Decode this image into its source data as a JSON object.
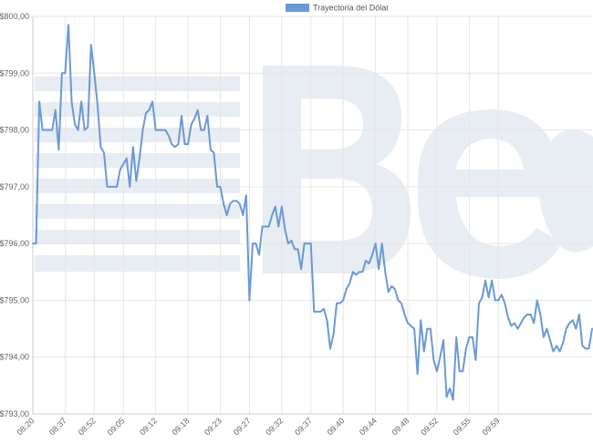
{
  "chart_data": {
    "type": "line",
    "title": "",
    "xlabel": "",
    "ylabel": "",
    "legend": {
      "position": "top-center",
      "entries": [
        "Trayectoria del Dólar"
      ]
    },
    "grid": true,
    "ylim": [
      793,
      800
    ],
    "y_ticks": [
      "$793,00",
      "$794,00",
      "$795,00",
      "$796,00",
      "$797,00",
      "$798,00",
      "$799,00",
      "$800,00"
    ],
    "x_ticks": [
      "08:20",
      "08:37",
      "08:52",
      "09:05",
      "09:12",
      "09:18",
      "09:23",
      "09:27",
      "09:32",
      "09:37",
      "09:40",
      "09:44",
      "09:48",
      "09:52",
      "09:55",
      "09:59"
    ],
    "x_tick_index": [
      0,
      10,
      19,
      28,
      38,
      48,
      58,
      67,
      77,
      86,
      96,
      106,
      116,
      125,
      135,
      144
    ],
    "series": [
      {
        "name": "Trayectoria del Dólar",
        "color": "#6a99d6",
        "values": [
          796.0,
          796.0,
          798.5,
          798.0,
          798.0,
          798.0,
          798.0,
          798.35,
          797.65,
          799.0,
          799.0,
          799.85,
          798.5,
          798.1,
          798.0,
          798.5,
          798.0,
          798.05,
          799.5,
          799.0,
          798.45,
          797.7,
          797.6,
          797.0,
          797.0,
          797.0,
          797.0,
          797.3,
          797.4,
          797.5,
          797.0,
          797.7,
          797.1,
          797.5,
          798.0,
          798.3,
          798.35,
          798.5,
          798.0,
          798.0,
          798.0,
          798.0,
          797.9,
          797.75,
          797.7,
          797.75,
          798.25,
          797.75,
          797.75,
          798.1,
          798.2,
          798.35,
          798.0,
          798.0,
          798.25,
          797.65,
          797.6,
          797.0,
          797.0,
          796.7,
          796.5,
          796.7,
          796.75,
          796.75,
          796.7,
          796.5,
          796.85,
          795.0,
          796.0,
          796.0,
          795.8,
          796.3,
          796.3,
          796.3,
          796.5,
          796.65,
          796.3,
          796.65,
          796.25,
          796.0,
          796.05,
          795.9,
          795.9,
          795.55,
          796.0,
          796.0,
          796.0,
          794.8,
          794.8,
          794.8,
          794.85,
          794.65,
          794.15,
          794.4,
          794.95,
          794.95,
          795.0,
          795.2,
          795.3,
          795.5,
          795.45,
          795.5,
          795.5,
          795.7,
          795.65,
          795.8,
          796.0,
          795.55,
          796.0,
          795.5,
          795.15,
          795.25,
          795.2,
          795.0,
          794.95,
          794.75,
          794.6,
          794.55,
          794.5,
          793.7,
          794.65,
          794.1,
          794.5,
          794.5,
          793.95,
          793.75,
          794.0,
          794.3,
          793.3,
          793.45,
          793.25,
          794.35,
          793.75,
          793.75,
          794.15,
          794.35,
          794.35,
          793.95,
          794.95,
          795.05,
          795.35,
          795.05,
          795.35,
          795.0,
          795.0,
          795.1,
          794.95,
          794.7,
          794.55,
          794.6,
          794.5,
          794.6,
          794.7,
          794.75,
          794.75,
          794.6,
          795.0,
          794.75,
          794.35,
          794.5,
          794.3,
          794.1,
          794.2,
          794.1,
          794.25,
          794.5,
          794.6,
          794.65,
          794.5,
          794.75,
          794.2,
          794.15,
          794.15,
          794.5
        ]
      }
    ]
  }
}
